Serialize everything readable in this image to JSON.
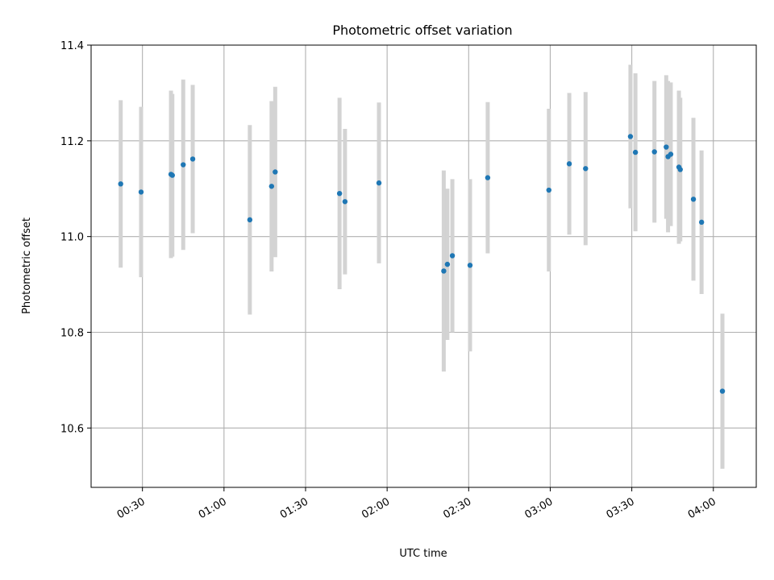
{
  "chart_data": {
    "type": "scatter",
    "title": "Photometric offset variation",
    "xlabel": "UTC time",
    "ylabel": "Photometric offset",
    "xlim": [
      "00:11:07",
      "04:15:47"
    ],
    "ylim": [
      10.476,
      11.4
    ],
    "x_ticks": [
      "00:30",
      "01:00",
      "01:30",
      "02:00",
      "02:30",
      "03:00",
      "03:30",
      "04:00"
    ],
    "y_ticks": [
      "10.6",
      "10.8",
      "11.0",
      "11.2",
      "11.4"
    ],
    "grid": true,
    "colors": {
      "marker": "#1f77b4",
      "errorbar": "#d3d3d3",
      "grid": "#b0b0b0"
    },
    "points": [
      {
        "time": "00:22:00",
        "y": 11.11,
        "err": 0.175
      },
      {
        "time": "00:29:30",
        "y": 11.093,
        "err": 0.178
      },
      {
        "time": "00:40:30",
        "y": 11.13,
        "err": 0.175
      },
      {
        "time": "00:41:00",
        "y": 11.128,
        "err": 0.17
      },
      {
        "time": "00:45:00",
        "y": 11.15,
        "err": 0.178
      },
      {
        "time": "00:48:30",
        "y": 11.162,
        "err": 0.155
      },
      {
        "time": "01:09:30",
        "y": 11.035,
        "err": 0.198
      },
      {
        "time": "01:17:30",
        "y": 11.105,
        "err": 0.178
      },
      {
        "time": "01:18:50",
        "y": 11.135,
        "err": 0.178
      },
      {
        "time": "01:42:30",
        "y": 11.09,
        "err": 0.2
      },
      {
        "time": "01:44:30",
        "y": 11.073,
        "err": 0.152
      },
      {
        "time": "01:57:00",
        "y": 11.112,
        "err": 0.168
      },
      {
        "time": "02:20:50",
        "y": 10.928,
        "err": 0.21
      },
      {
        "time": "02:22:10",
        "y": 10.942,
        "err": 0.158
      },
      {
        "time": "02:24:00",
        "y": 10.96,
        "err": 0.16
      },
      {
        "time": "02:30:30",
        "y": 10.94,
        "err": 0.18
      },
      {
        "time": "02:37:00",
        "y": 11.123,
        "err": 0.158
      },
      {
        "time": "02:59:30",
        "y": 11.097,
        "err": 0.17
      },
      {
        "time": "03:07:00",
        "y": 11.152,
        "err": 0.148
      },
      {
        "time": "03:13:00",
        "y": 11.142,
        "err": 0.16
      },
      {
        "time": "03:29:30",
        "y": 11.209,
        "err": 0.15
      },
      {
        "time": "03:31:20",
        "y": 11.176,
        "err": 0.165
      },
      {
        "time": "03:38:20",
        "y": 11.177,
        "err": 0.148
      },
      {
        "time": "03:42:40",
        "y": 11.187,
        "err": 0.15
      },
      {
        "time": "03:43:20",
        "y": 11.167,
        "err": 0.158
      },
      {
        "time": "03:44:20",
        "y": 11.172,
        "err": 0.15
      },
      {
        "time": "03:47:20",
        "y": 11.145,
        "err": 0.16
      },
      {
        "time": "03:47:50",
        "y": 11.14,
        "err": 0.15
      },
      {
        "time": "03:52:40",
        "y": 11.078,
        "err": 0.17
      },
      {
        "time": "03:55:40",
        "y": 11.03,
        "err": 0.15
      },
      {
        "time": "04:03:20",
        "y": 10.677,
        "err": 0.162
      }
    ]
  }
}
